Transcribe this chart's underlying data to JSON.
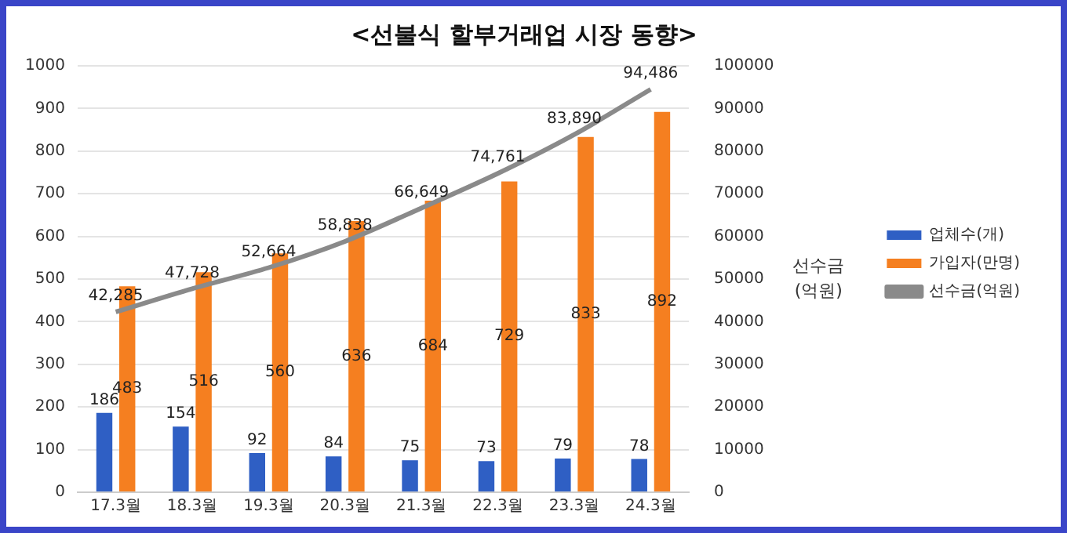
{
  "chart_data": {
    "type": "bar",
    "title": "<선불식 할부거래업 시장 동향>",
    "y2label": "선수금 (억원)",
    "categories": [
      "17.3월",
      "18.3월",
      "19.3월",
      "20.3월",
      "21.3월",
      "22.3월",
      "23.3월",
      "24.3월"
    ],
    "series": [
      {
        "name": "업체수(개)",
        "color": "#2f5fc4",
        "values": [
          186,
          154,
          92,
          84,
          75,
          73,
          79,
          78
        ]
      },
      {
        "name": "가입자(만명)",
        "color": "#f57f20",
        "values": [
          483,
          516,
          560,
          636,
          684,
          729,
          833,
          892
        ]
      },
      {
        "name": "선수금(억원)",
        "type": "line",
        "axis": "y2",
        "color": "#8a8a8a",
        "values": [
          42285,
          47728,
          52664,
          58838,
          66649,
          74761,
          83890,
          94486
        ],
        "value_labels": [
          "42,285",
          "47,728",
          "52,664",
          "58,838",
          "66,649",
          "74,761",
          "83,890",
          "94,486"
        ]
      }
    ],
    "data_labels": true,
    "ylim": [
      0,
      1000
    ],
    "yticks": [
      0,
      100,
      200,
      300,
      400,
      500,
      600,
      700,
      800,
      900,
      1000
    ],
    "y2lim": [
      0,
      100000
    ],
    "y2ticks": [
      0,
      10000,
      20000,
      30000,
      40000,
      50000,
      60000,
      70000,
      80000,
      90000,
      100000
    ],
    "grid": "y",
    "legend": "right"
  }
}
